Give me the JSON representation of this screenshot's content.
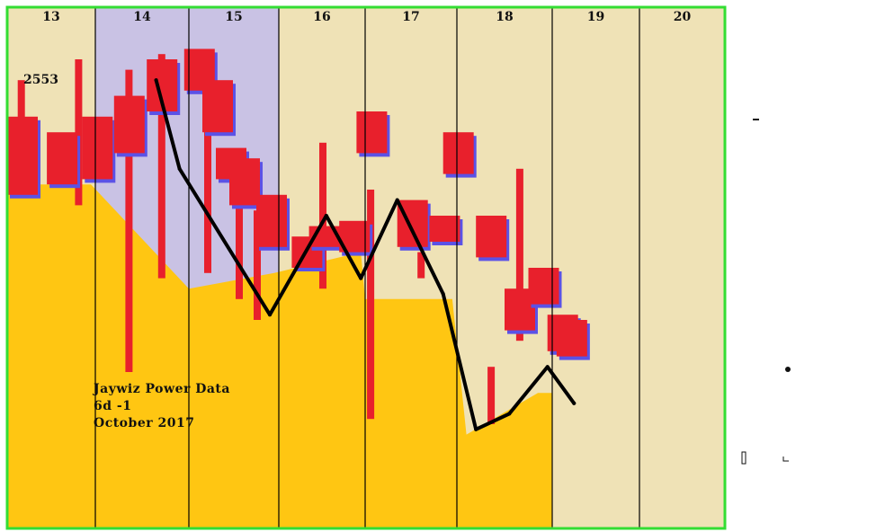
{
  "chart_data": {
    "type": "line",
    "title": "",
    "caption_lines": [
      "Jaywiz Power Data",
      "6d -1",
      "October 2017"
    ],
    "price_label": "2553",
    "categories": [
      "13",
      "14",
      "15",
      "16",
      "17",
      "18",
      "19",
      "20"
    ],
    "ylim": [
      0,
      100
    ],
    "line_series": {
      "name": "",
      "points": [
        {
          "x": 14.65,
          "y": 86
        },
        {
          "x": 14.9,
          "y": 69
        },
        {
          "x": 15.9,
          "y": 41
        },
        {
          "x": 16.55,
          "y": 60
        },
        {
          "x": 16.95,
          "y": 48
        },
        {
          "x": 17.35,
          "y": 63
        },
        {
          "x": 17.85,
          "y": 45
        },
        {
          "x": 18.2,
          "y": 19
        },
        {
          "x": 18.55,
          "y": 22
        },
        {
          "x": 18.95,
          "y": 31
        },
        {
          "x": 19.25,
          "y": 24
        }
      ]
    },
    "area_series": {
      "name": "",
      "points": [
        {
          "x": 13.0,
          "y": 66
        },
        {
          "x": 13.95,
          "y": 66
        },
        {
          "x": 15.0,
          "y": 46
        },
        {
          "x": 15.95,
          "y": 49
        },
        {
          "x": 16.95,
          "y": 53
        },
        {
          "x": 17.0,
          "y": 44
        },
        {
          "x": 17.95,
          "y": 44
        },
        {
          "x": 18.1,
          "y": 18
        },
        {
          "x": 18.85,
          "y": 26
        },
        {
          "x": 19.0,
          "y": 26
        }
      ]
    },
    "bars": [
      {
        "x": 13.0,
        "low": 64,
        "high": 79
      },
      {
        "x": 13.45,
        "low": 66,
        "high": 76
      },
      {
        "x": 13.85,
        "low": 67,
        "high": 79
      },
      {
        "x": 14.2,
        "low": 72,
        "high": 83
      },
      {
        "x": 14.55,
        "low": 80,
        "high": 90
      },
      {
        "x": 14.95,
        "low": 84,
        "high": 92
      },
      {
        "x": 15.15,
        "low": 76,
        "high": 86
      },
      {
        "x": 15.3,
        "low": 67,
        "high": 73
      },
      {
        "x": 15.45,
        "low": 62,
        "high": 71
      },
      {
        "x": 15.75,
        "low": 54,
        "high": 64
      },
      {
        "x": 16.15,
        "low": 50,
        "high": 56
      },
      {
        "x": 16.35,
        "low": 54,
        "high": 58
      },
      {
        "x": 16.7,
        "low": 53,
        "high": 59
      },
      {
        "x": 16.9,
        "low": 72,
        "high": 80
      },
      {
        "x": 17.35,
        "low": 54,
        "high": 63
      },
      {
        "x": 17.7,
        "low": 55,
        "high": 60
      },
      {
        "x": 17.85,
        "low": 68,
        "high": 76
      },
      {
        "x": 18.2,
        "low": 52,
        "high": 60
      },
      {
        "x": 18.5,
        "low": 38,
        "high": 46
      },
      {
        "x": 18.75,
        "low": 43,
        "high": 50
      },
      {
        "x": 18.95,
        "low": 34,
        "high": 41
      },
      {
        "x": 19.05,
        "low": 33,
        "high": 40
      }
    ],
    "wicks": [
      {
        "x": 13.15,
        "low": 64,
        "high": 86
      },
      {
        "x": 13.8,
        "low": 62,
        "high": 90
      },
      {
        "x": 14.35,
        "low": 30,
        "high": 88
      },
      {
        "x": 14.7,
        "low": 48,
        "high": 91
      },
      {
        "x": 15.2,
        "low": 49,
        "high": 80
      },
      {
        "x": 15.55,
        "low": 44,
        "high": 62
      },
      {
        "x": 15.75,
        "low": 40,
        "high": 61
      },
      {
        "x": 16.5,
        "low": 46,
        "high": 74
      },
      {
        "x": 17.05,
        "low": 21,
        "high": 65
      },
      {
        "x": 17.6,
        "low": 48,
        "high": 53
      },
      {
        "x": 18.35,
        "low": 20,
        "high": 31
      },
      {
        "x": 18.65,
        "low": 36,
        "high": 69
      }
    ],
    "shaded_categories": [
      "14",
      "15"
    ],
    "colors": {
      "background": "#efe2b6",
      "area": "#ffc612",
      "bars": "#e8202c",
      "bar_shadow": "#5b52e6",
      "line": "#000000",
      "shaded": "#c9c2e4",
      "frame": "#33dd33",
      "outside": "#ffffff"
    }
  }
}
